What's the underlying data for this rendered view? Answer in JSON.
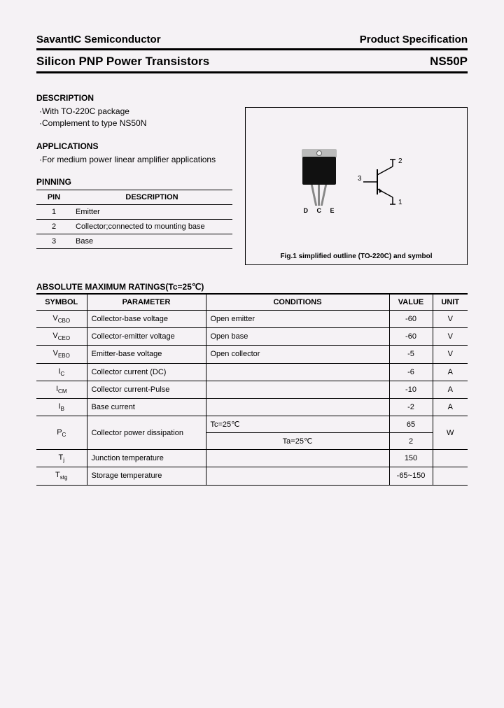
{
  "header": {
    "company": "SavantIC Semiconductor",
    "spec": "Product Specification",
    "title": "Silicon PNP Power Transistors",
    "partno": "NS50P"
  },
  "description": {
    "heading": "DESCRIPTION",
    "line1": "·With TO-220C package",
    "line2": "·Complement to type NS50N"
  },
  "applications": {
    "heading": "APPLICATIONS",
    "text": "·For medium power linear amplifier applications"
  },
  "pinning": {
    "heading": "PINNING",
    "col_pin": "PIN",
    "col_desc": "DESCRIPTION",
    "rows": [
      {
        "pin": "1",
        "desc": "Emitter"
      },
      {
        "pin": "2",
        "desc": "Collector;connected to mounting base"
      },
      {
        "pin": "3",
        "desc": "Base"
      }
    ]
  },
  "figure": {
    "leads": "D C E",
    "pin2": "2",
    "pin3": "3",
    "pin1": "1",
    "caption": "Fig.1 simplified outline (TO-220C) and symbol"
  },
  "amr": {
    "heading": "ABSOLUTE MAXIMUM RATINGS(Tc=25℃)",
    "cols": {
      "symbol": "SYMBOL",
      "param": "PARAMETER",
      "cond": "CONDITIONS",
      "value": "VALUE",
      "unit": "UNIT"
    },
    "rows": [
      {
        "sym": "V",
        "sub": "CBO",
        "param": "Collector-base voltage",
        "cond": "Open emitter",
        "val": "-60",
        "unit": "V"
      },
      {
        "sym": "V",
        "sub": "CEO",
        "param": "Collector-emitter voltage",
        "cond": "Open base",
        "val": "-60",
        "unit": "V"
      },
      {
        "sym": "V",
        "sub": "EBO",
        "param": "Emitter-base voltage",
        "cond": "Open collector",
        "val": "-5",
        "unit": "V"
      },
      {
        "sym": "I",
        "sub": "C",
        "param": "Collector current (DC)",
        "cond": "",
        "val": "-6",
        "unit": "A"
      },
      {
        "sym": "I",
        "sub": "CM",
        "param": "Collector current-Pulse",
        "cond": "",
        "val": "-10",
        "unit": "A"
      },
      {
        "sym": "I",
        "sub": "B",
        "param": "Base current",
        "cond": "",
        "val": "-2",
        "unit": "A"
      }
    ],
    "pc": {
      "sym": "P",
      "sub": "C",
      "param": "Collector power dissipation",
      "cond1": "Tc=25℃",
      "val1": "65",
      "cond2": "Ta=25℃",
      "val2": "2",
      "unit": "W"
    },
    "tj": {
      "sym": "T",
      "sub": "j",
      "param": "Junction temperature",
      "cond": "",
      "val": "150",
      "unit": ""
    },
    "tstg": {
      "sym": "T",
      "sub": "stg",
      "param": "Storage temperature",
      "cond": "",
      "val": "-65~150",
      "unit": ""
    }
  }
}
